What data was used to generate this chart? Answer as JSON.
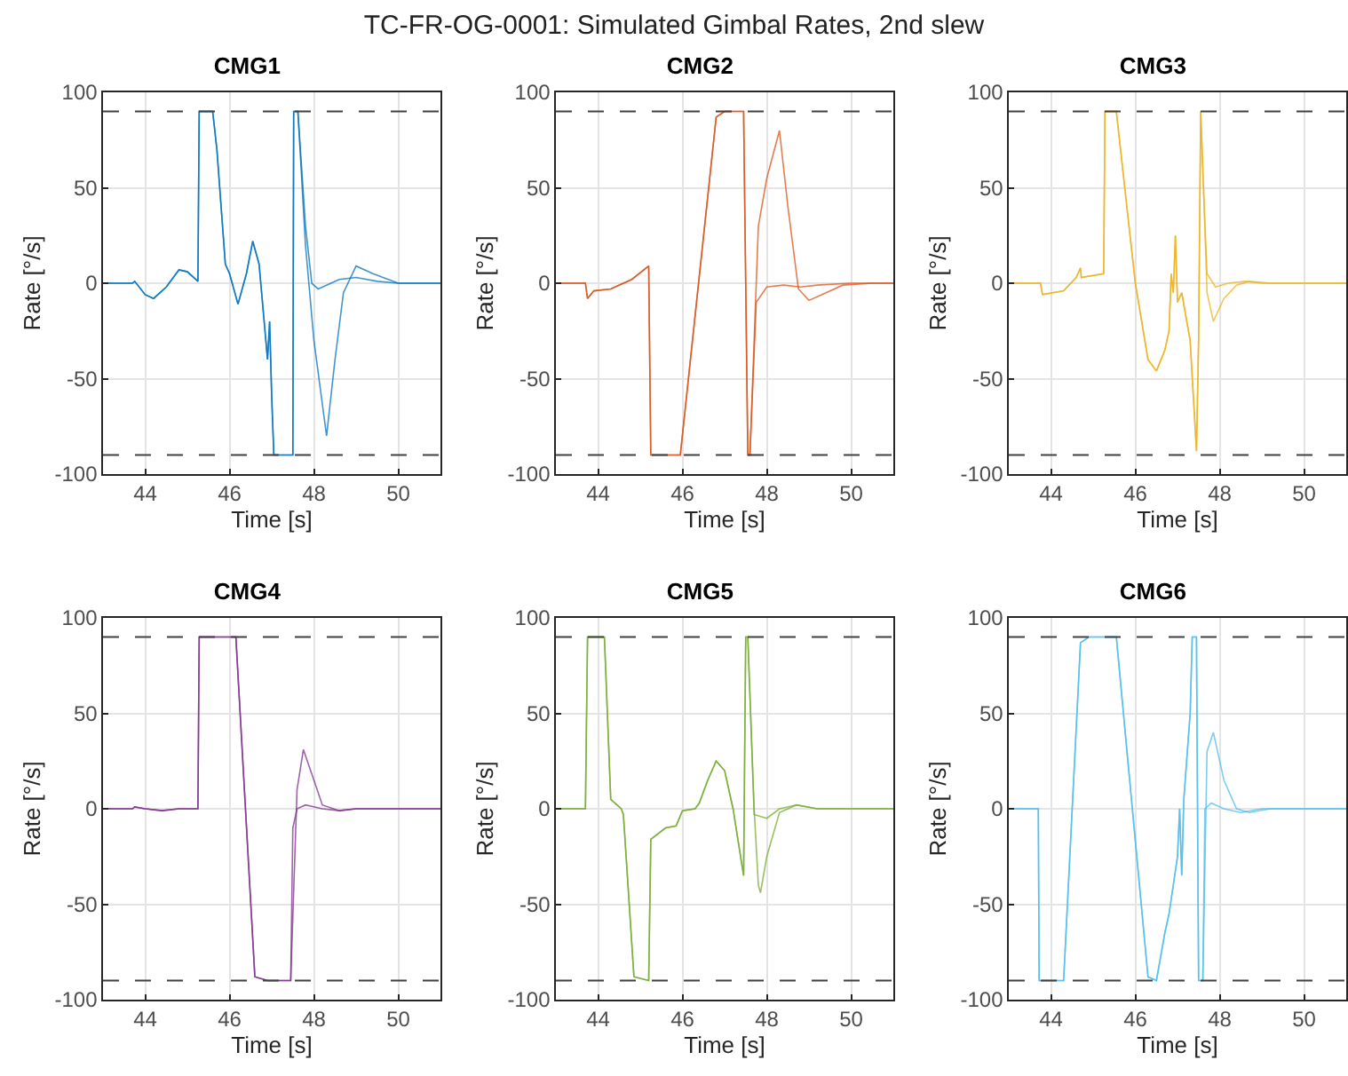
{
  "chart_data": [
    {
      "type": "line",
      "title": "CMG1",
      "xlabel": "Time [s]",
      "ylabel": "Rate [°/s]",
      "annotations": [
        "TC-FR-OG-0001: Simulated Gimbal Rates, 2nd slew"
      ],
      "xlim": [
        43,
        51
      ],
      "ylim": [
        -100,
        100
      ],
      "xticks": [
        44,
        46,
        48,
        50
      ],
      "yticks": [
        -100,
        -50,
        0,
        50,
        100
      ],
      "grid": true,
      "marker": "none",
      "line_style": "solid",
      "ref_lines": [
        {
          "axis": "y",
          "value": 90,
          "color": "#404040",
          "line_style": "dashed"
        },
        {
          "axis": "y",
          "value": -90,
          "color": "#404040",
          "line_style": "dashed"
        }
      ],
      "series": [
        {
          "color": "#0072bd",
          "x": [
            43,
            43.7,
            43.75,
            44,
            44.2,
            44.5,
            44.8,
            45,
            45.25,
            45.28,
            45.6,
            45.7,
            45.9,
            46,
            46.2,
            46.4,
            46.55,
            46.7,
            46.9,
            46.95,
            47,
            47.05,
            47.5,
            47.52,
            47.62,
            47.8,
            47.95,
            48.1,
            48.3,
            48.6,
            49,
            49.5,
            50,
            51
          ],
          "values": [
            0,
            0,
            1,
            -6,
            -8,
            -2,
            7,
            6,
            1,
            90,
            90,
            70,
            10,
            5,
            -11,
            5,
            22,
            10,
            -40,
            -20,
            -60,
            -90,
            -90,
            90,
            90,
            30,
            0,
            -3,
            -1,
            2,
            3,
            1,
            0,
            0
          ]
        },
        {
          "color": "#0072bd",
          "x": [
            43,
            43.7,
            43.75,
            44,
            44.2,
            44.5,
            44.8,
            45,
            45.25,
            45.28,
            45.6,
            45.7,
            45.9,
            46,
            46.2,
            46.4,
            46.55,
            46.7,
            46.9,
            46.95,
            47,
            47.05,
            47.5,
            47.52,
            47.62,
            47.8,
            48,
            48.3,
            48.5,
            48.7,
            49,
            49.4,
            50,
            51
          ],
          "values": [
            0,
            0,
            1,
            -6,
            -8,
            -2,
            7,
            6,
            1,
            90,
            90,
            70,
            10,
            5,
            -11,
            5,
            22,
            10,
            -40,
            -20,
            -60,
            -90,
            -90,
            90,
            90,
            20,
            -30,
            -80,
            -40,
            -5,
            9,
            5,
            0,
            0
          ]
        }
      ]
    },
    {
      "type": "line",
      "title": "CMG2",
      "xlabel": "Time [s]",
      "ylabel": "Rate [°/s]",
      "xlim": [
        43,
        51
      ],
      "ylim": [
        -100,
        100
      ],
      "xticks": [
        44,
        46,
        48,
        50
      ],
      "yticks": [
        -100,
        -50,
        0,
        50,
        100
      ],
      "grid": true,
      "marker": "none",
      "line_style": "solid",
      "ref_lines": [
        {
          "axis": "y",
          "value": 90,
          "color": "#404040",
          "line_style": "dashed"
        },
        {
          "axis": "y",
          "value": -90,
          "color": "#404040",
          "line_style": "dashed"
        }
      ],
      "series": [
        {
          "color": "#d95319",
          "x": [
            43,
            43.7,
            43.75,
            43.9,
            44.3,
            44.8,
            45.2,
            45.25,
            45.95,
            46.8,
            47,
            47.45,
            47.5,
            47.55,
            47.6,
            47.75,
            48,
            48.4,
            48.8,
            49.2,
            50,
            51
          ],
          "values": [
            0,
            0,
            -8,
            -4,
            -3,
            2,
            9,
            -90,
            -90,
            87,
            90,
            90,
            0,
            -90,
            -90,
            -10,
            -2,
            -1,
            -2,
            -1,
            0,
            0
          ]
        },
        {
          "color": "#d95319",
          "x": [
            43,
            43.7,
            43.75,
            43.9,
            44.3,
            44.8,
            45.2,
            45.25,
            45.95,
            46.8,
            47,
            47.45,
            47.5,
            47.55,
            47.6,
            47.8,
            48,
            48.3,
            48.5,
            48.75,
            49,
            49.3,
            49.8,
            50.5,
            51
          ],
          "values": [
            0,
            0,
            -8,
            -4,
            -3,
            2,
            9,
            -90,
            -90,
            87,
            90,
            90,
            0,
            -90,
            -90,
            30,
            55,
            80,
            40,
            -3,
            -9,
            -6,
            -1,
            0,
            0
          ]
        }
      ]
    },
    {
      "type": "line",
      "title": "CMG3",
      "xlabel": "Time [s]",
      "ylabel": "Rate [°/s]",
      "xlim": [
        43,
        51
      ],
      "ylim": [
        -100,
        100
      ],
      "xticks": [
        44,
        46,
        48,
        50
      ],
      "yticks": [
        -100,
        -50,
        0,
        50,
        100
      ],
      "grid": true,
      "marker": "none",
      "line_style": "solid",
      "ref_lines": [
        {
          "axis": "y",
          "value": 90,
          "color": "#404040",
          "line_style": "dashed"
        },
        {
          "axis": "y",
          "value": -90,
          "color": "#404040",
          "line_style": "dashed"
        }
      ],
      "series": [
        {
          "color": "#edb120",
          "x": [
            43,
            43.75,
            43.8,
            44.3,
            44.6,
            44.7,
            44.72,
            45.25,
            45.28,
            45.55,
            46,
            46.3,
            46.5,
            46.7,
            46.8,
            46.85,
            46.9,
            46.95,
            47,
            47.1,
            47.3,
            47.45,
            47.5,
            47.55,
            47.6,
            47.7,
            47.9,
            48.2,
            48.6,
            49,
            51
          ],
          "values": [
            0,
            0,
            -6,
            -4,
            3,
            8,
            3,
            5,
            90,
            90,
            0,
            -40,
            -46,
            -35,
            -25,
            5,
            -5,
            25,
            -10,
            -5,
            -30,
            -88,
            -30,
            90,
            60,
            5,
            -2,
            0,
            1,
            0,
            0
          ]
        },
        {
          "color": "#edb120",
          "x": [
            43,
            43.75,
            43.8,
            44.3,
            44.6,
            44.7,
            44.72,
            45.25,
            45.28,
            45.55,
            46,
            46.3,
            46.5,
            46.7,
            46.8,
            46.85,
            46.9,
            46.95,
            47,
            47.1,
            47.3,
            47.45,
            47.5,
            47.55,
            47.6,
            47.7,
            47.85,
            48.1,
            48.4,
            48.7,
            49.2,
            51
          ],
          "values": [
            0,
            0,
            -6,
            -4,
            3,
            8,
            3,
            5,
            90,
            90,
            0,
            -40,
            -46,
            -35,
            -25,
            5,
            -5,
            25,
            -10,
            -5,
            -30,
            -88,
            -30,
            90,
            60,
            -5,
            -20,
            -8,
            -1,
            1,
            0,
            0
          ]
        }
      ]
    },
    {
      "type": "line",
      "title": "CMG4",
      "xlabel": "Time [s]",
      "ylabel": "Rate [°/s]",
      "xlim": [
        43,
        51
      ],
      "ylim": [
        -100,
        100
      ],
      "xticks": [
        44,
        46,
        48,
        50
      ],
      "yticks": [
        -100,
        -50,
        0,
        50,
        100
      ],
      "grid": true,
      "marker": "none",
      "line_style": "solid",
      "ref_lines": [
        {
          "axis": "y",
          "value": 90,
          "color": "#404040",
          "line_style": "dashed"
        },
        {
          "axis": "y",
          "value": -90,
          "color": "#404040",
          "line_style": "dashed"
        }
      ],
      "series": [
        {
          "color": "#7e2f8e",
          "x": [
            43,
            43.7,
            43.75,
            44,
            44.4,
            44.8,
            45.25,
            45.28,
            46.15,
            46.6,
            46.9,
            47.45,
            47.5,
            47.6,
            47.8,
            48.2,
            48.6,
            49,
            51
          ],
          "values": [
            0,
            0,
            1,
            0,
            -1,
            0,
            0,
            90,
            90,
            -88,
            -90,
            -90,
            -10,
            0,
            2,
            0,
            -1,
            0,
            0
          ]
        },
        {
          "color": "#7e2f8e",
          "x": [
            43,
            43.7,
            43.75,
            44,
            44.4,
            44.8,
            45.25,
            45.28,
            46.15,
            46.6,
            46.9,
            47.45,
            47.6,
            47.75,
            48,
            48.2,
            48.6,
            49,
            51
          ],
          "values": [
            0,
            0,
            1,
            0,
            -1,
            0,
            0,
            90,
            90,
            -88,
            -90,
            -90,
            10,
            31,
            15,
            2,
            -1,
            0,
            0
          ]
        }
      ]
    },
    {
      "type": "line",
      "title": "CMG5",
      "xlabel": "Time [s]",
      "ylabel": "Rate [°/s]",
      "xlim": [
        43,
        51
      ],
      "ylim": [
        -100,
        100
      ],
      "xticks": [
        44,
        46,
        48,
        50
      ],
      "yticks": [
        -100,
        -50,
        0,
        50,
        100
      ],
      "grid": true,
      "marker": "none",
      "line_style": "solid",
      "ref_lines": [
        {
          "axis": "y",
          "value": 90,
          "color": "#404040",
          "line_style": "dashed"
        },
        {
          "axis": "y",
          "value": -90,
          "color": "#404040",
          "line_style": "dashed"
        }
      ],
      "series": [
        {
          "color": "#77ac30",
          "x": [
            43,
            43.7,
            43.75,
            44.15,
            44.3,
            44.55,
            44.6,
            44.85,
            45.2,
            45.25,
            45.6,
            45.85,
            46,
            46.3,
            46.4,
            46.6,
            46.8,
            47,
            47.2,
            47.45,
            47.5,
            47.55,
            47.7,
            48,
            48.3,
            48.7,
            49.2,
            51
          ],
          "values": [
            0,
            0,
            90,
            90,
            5,
            0,
            -3,
            -88,
            -90,
            -16,
            -10,
            -9,
            -1,
            0,
            3,
            15,
            25,
            20,
            0,
            -35,
            90,
            90,
            -3,
            -5,
            0,
            2,
            0,
            0
          ]
        },
        {
          "color": "#77ac30",
          "x": [
            43,
            43.7,
            43.75,
            44.15,
            44.3,
            44.55,
            44.6,
            44.85,
            45.2,
            45.25,
            45.6,
            45.85,
            46,
            46.3,
            46.4,
            46.6,
            46.8,
            47,
            47.2,
            47.45,
            47.5,
            47.55,
            47.7,
            47.8,
            47.85,
            48,
            48.3,
            48.7,
            49.2,
            51
          ],
          "values": [
            0,
            0,
            90,
            90,
            5,
            0,
            -3,
            -88,
            -90,
            -16,
            -10,
            -9,
            -1,
            0,
            3,
            15,
            25,
            20,
            0,
            -35,
            90,
            90,
            0,
            -40,
            -44,
            -25,
            -2,
            2,
            0,
            0
          ]
        }
      ]
    },
    {
      "type": "line",
      "title": "CMG6",
      "xlabel": "Time [s]",
      "ylabel": "Rate [°/s]",
      "xlim": [
        43,
        51
      ],
      "ylim": [
        -100,
        100
      ],
      "xticks": [
        44,
        46,
        48,
        50
      ],
      "yticks": [
        -100,
        -50,
        0,
        50,
        100
      ],
      "grid": true,
      "marker": "none",
      "line_style": "solid",
      "ref_lines": [
        {
          "axis": "y",
          "value": 90,
          "color": "#404040",
          "line_style": "dashed"
        },
        {
          "axis": "y",
          "value": -90,
          "color": "#404040",
          "line_style": "dashed"
        }
      ],
      "series": [
        {
          "color": "#4dbeee",
          "x": [
            43,
            43.7,
            43.72,
            44.3,
            44.7,
            44.9,
            45.55,
            46.3,
            46.5,
            46.7,
            46.8,
            46.9,
            47,
            47.05,
            47.1,
            47.15,
            47.3,
            47.35,
            47.45,
            47.5,
            47.6,
            47.65,
            47.8,
            48.1,
            48.5,
            49,
            51
          ],
          "values": [
            0,
            0,
            -90,
            -90,
            87,
            90,
            90,
            -88,
            -90,
            -65,
            -55,
            -40,
            -25,
            0,
            -35,
            5,
            50,
            90,
            90,
            -90,
            -90,
            0,
            3,
            0,
            -2,
            0,
            0
          ]
        },
        {
          "color": "#4dbeee",
          "x": [
            43,
            43.7,
            43.72,
            44.3,
            44.7,
            44.9,
            45.55,
            46.3,
            46.5,
            46.7,
            46.8,
            46.9,
            47,
            47.05,
            47.1,
            47.15,
            47.3,
            47.35,
            47.45,
            47.5,
            47.6,
            47.7,
            47.85,
            48.1,
            48.4,
            48.7,
            49.2,
            51
          ],
          "values": [
            0,
            0,
            -90,
            -90,
            87,
            90,
            90,
            -88,
            -90,
            -65,
            -55,
            -40,
            -25,
            0,
            -35,
            5,
            50,
            90,
            90,
            -90,
            -90,
            30,
            40,
            15,
            0,
            -2,
            0,
            0
          ]
        }
      ]
    }
  ]
}
